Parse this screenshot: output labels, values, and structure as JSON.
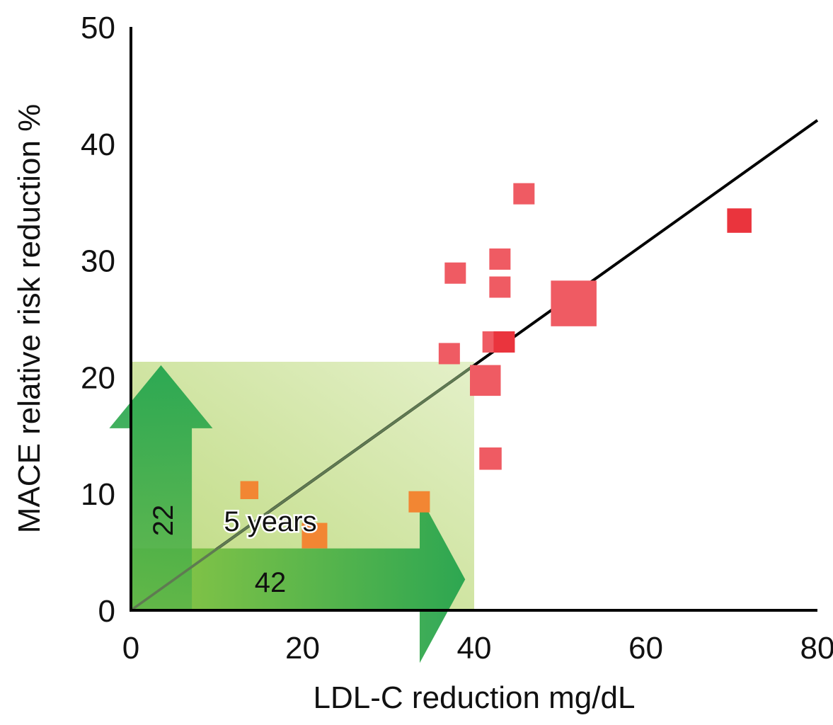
{
  "chart_data": {
    "type": "scatter",
    "title": "",
    "xlabel": "LDL-C reduction mg/dL",
    "ylabel": "MACE relative risk reduction %",
    "xlim": [
      0,
      80
    ],
    "ylim": [
      0,
      50
    ],
    "x_ticks": [
      0,
      20,
      40,
      60,
      80
    ],
    "y_ticks": [
      0,
      10,
      20,
      30,
      40,
      50
    ],
    "x_tick_labels": [
      "0",
      "20",
      "40",
      "60",
      "80"
    ],
    "y_tick_labels": [
      "0",
      "10",
      "20",
      "30",
      "40",
      "50"
    ],
    "grid": false,
    "legend": null,
    "marker": "square",
    "series": [
      {
        "name": "trials-red",
        "color": "#ef5b63",
        "points": [
          {
            "x": 45.8,
            "y": 35.7,
            "size": 1.0
          },
          {
            "x": 70.9,
            "y": 33.4,
            "size": 1.15,
            "color": "#ea343d"
          },
          {
            "x": 43.0,
            "y": 30.1,
            "size": 1.0
          },
          {
            "x": 37.8,
            "y": 28.9,
            "size": 1.0
          },
          {
            "x": 43.0,
            "y": 27.7,
            "size": 1.0
          },
          {
            "x": 51.6,
            "y": 26.3,
            "size": 2.15
          },
          {
            "x": 42.2,
            "y": 23.0,
            "size": 1.0
          },
          {
            "x": 43.5,
            "y": 23.0,
            "size": 1.0,
            "color": "#ea343d"
          },
          {
            "x": 37.1,
            "y": 22.0,
            "size": 1.0
          },
          {
            "x": 41.3,
            "y": 19.7,
            "size": 1.45
          },
          {
            "x": 41.9,
            "y": 13.0,
            "size": 1.05
          }
        ]
      },
      {
        "name": "trials-orange",
        "color": "#f28633",
        "points": [
          {
            "x": 13.8,
            "y": 10.3,
            "size": 0.85
          },
          {
            "x": 33.6,
            "y": 9.3,
            "size": 1.0
          },
          {
            "x": 21.4,
            "y": 6.4,
            "size": 1.2
          }
        ]
      }
    ],
    "regression_line": {
      "x": [
        0,
        80
      ],
      "y": [
        0,
        42
      ],
      "color": "#000000"
    },
    "highlight_region": {
      "x": [
        0,
        40
      ],
      "y": [
        0,
        21.3
      ],
      "color": "#c9e297"
    },
    "annotations": {
      "vertical_arrow_label": "22",
      "horizontal_arrow_label": "42",
      "period_label": "5 years",
      "vertical_arrow_value": 22,
      "horizontal_arrow_value": 42
    }
  }
}
